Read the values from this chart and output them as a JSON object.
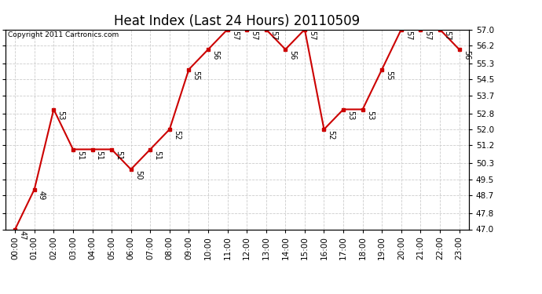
{
  "title": "Heat Index (Last 24 Hours) 20110509",
  "copyright": "Copyright 2011 Cartronics.com",
  "hours": [
    0,
    1,
    2,
    3,
    4,
    5,
    6,
    7,
    8,
    9,
    10,
    11,
    12,
    13,
    14,
    15,
    16,
    17,
    18,
    19,
    20,
    21,
    22,
    23
  ],
  "values": [
    47,
    49,
    53,
    51,
    51,
    51,
    50,
    51,
    52,
    55,
    56,
    57,
    57,
    57,
    56,
    57,
    52,
    53,
    53,
    55,
    57,
    57,
    57,
    56
  ],
  "xlabels": [
    "00:00",
    "01:00",
    "02:00",
    "03:00",
    "04:00",
    "05:00",
    "06:00",
    "07:00",
    "08:00",
    "09:00",
    "10:00",
    "11:00",
    "12:00",
    "13:00",
    "14:00",
    "15:00",
    "16:00",
    "17:00",
    "18:00",
    "19:00",
    "20:00",
    "21:00",
    "22:00",
    "23:00"
  ],
  "yticks": [
    47.0,
    47.8,
    48.7,
    49.5,
    50.3,
    51.2,
    52.0,
    52.8,
    53.7,
    54.5,
    55.3,
    56.2,
    57.0
  ],
  "ylim": [
    47.0,
    57.0
  ],
  "line_color": "#cc0000",
  "marker_color": "#cc0000",
  "bg_color": "#ffffff",
  "grid_color": "#cccccc",
  "title_fontsize": 12,
  "label_fontsize": 7.5,
  "annotation_fontsize": 7,
  "copyright_fontsize": 6.5
}
